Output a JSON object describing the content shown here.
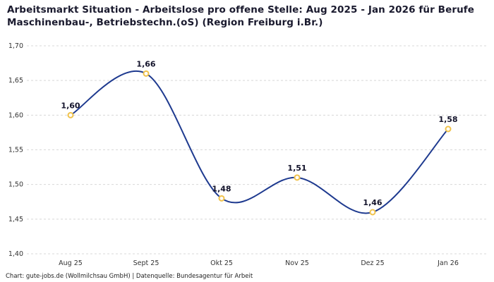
{
  "title": "Arbeitsmarkt Situation - Arbeitslose pro offene Stelle: Aug 2025 - Jan 2026 für Berufe Maschinenbau-, Betriebstechn.(oS) (Region Freiburg i.Br.)",
  "footer": "Chart: gute-jobs.de (Wollmilchsau GmbH) | Datenquelle: Bundesagentur für Arbeit",
  "colors": {
    "line": "#1e3a8f",
    "marker_stroke": "#f0c24b",
    "marker_fill": "#ffffff",
    "grid": "#d8d8d8",
    "title": "#1a1a2e",
    "value_label": "#13132b",
    "tick_label": "#333333"
  },
  "chart_data": {
    "type": "line",
    "title": "Arbeitsmarkt Situation - Arbeitslose pro offene Stelle: Aug 2025 - Jan 2026 für Berufe Maschinenbau-, Betriebstechn.(oS) (Region Freiburg i.Br.)",
    "categories": [
      "Aug 25",
      "Sept 25",
      "Okt 25",
      "Nov 25",
      "Dez 25",
      "Jan 26"
    ],
    "values": [
      1.6,
      1.66,
      1.48,
      1.51,
      1.46,
      1.58
    ],
    "value_labels": [
      "1,60",
      "1,66",
      "1,48",
      "1,51",
      "1,46",
      "1,58"
    ],
    "y_ticks": [
      1.4,
      1.45,
      1.5,
      1.55,
      1.6,
      1.65,
      1.7
    ],
    "y_tick_labels": [
      "1,40",
      "1,45",
      "1,50",
      "1,55",
      "1,60",
      "1,65",
      "1,70"
    ],
    "ylim": [
      1.4,
      1.7
    ],
    "xlabel": "",
    "ylabel": "",
    "grid": true,
    "grid_style": "dashed",
    "smooth": true,
    "legend_position": "none"
  }
}
